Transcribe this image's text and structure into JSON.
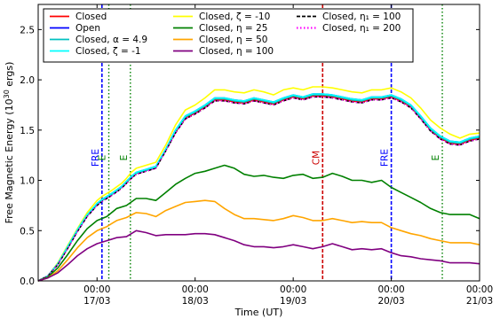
{
  "chart_data": {
    "type": "line",
    "xlabel": "Time (UT)",
    "ylabel": {
      "prefix": "Free Magnetic Energy (10",
      "exp": "30",
      "suffix": " ergs)"
    },
    "xlim": [
      0.0,
      4.5
    ],
    "ylim": [
      0.0,
      2.75
    ],
    "yticks": [
      "0.0",
      "0.5",
      "1.0",
      "1.5",
      "2.0",
      "2.5"
    ],
    "ytick_values": [
      0.0,
      0.5,
      1.0,
      1.5,
      2.0,
      2.5
    ],
    "xticks": [
      {
        "x": 0.6,
        "line1": "00:00",
        "line2": "17/03"
      },
      {
        "x": 1.6,
        "line1": "00:00",
        "line2": "18/03"
      },
      {
        "x": 2.6,
        "line1": "00:00",
        "line2": "19/03"
      },
      {
        "x": 3.6,
        "line1": "00:00",
        "line2": "20/03"
      },
      {
        "x": 4.6,
        "line1": "00:00",
        "line2": "21/03"
      }
    ],
    "grid": false,
    "legend_placement": "top",
    "legend": [
      {
        "label": "Closed",
        "color": "#ff0000",
        "style": "solid"
      },
      {
        "label": "Open",
        "color": "#0000ff",
        "style": "solid"
      },
      {
        "label": "Closed, α = 4.9",
        "color": "#00c0c0",
        "style": "solid"
      },
      {
        "label": "Closed, ζ = -1",
        "color": "#00ffff",
        "style": "solid"
      },
      {
        "label": "Closed, ζ = -10",
        "color": "#ffff00",
        "style": "solid"
      },
      {
        "label": "Closed, η = 25",
        "color": "#008000",
        "style": "solid"
      },
      {
        "label": "Closed, η = 50",
        "color": "#ffa500",
        "style": "solid"
      },
      {
        "label": "Closed, η = 100",
        "color": "#800080",
        "style": "solid"
      },
      {
        "label": "Closed, η₁ = 100",
        "color": "#000000",
        "style": "dashed"
      },
      {
        "label": "Closed, η₁ = 200",
        "color": "#ff00ff",
        "style": "dotted"
      }
    ],
    "vlines": [
      {
        "x": 0.65,
        "color": "#0000ff",
        "style": "dashed",
        "label": "FRE"
      },
      {
        "x": 0.72,
        "color": "#008000",
        "style": "dotted",
        "label": "E"
      },
      {
        "x": 0.94,
        "color": "#008000",
        "style": "dotted",
        "label": "E"
      },
      {
        "x": 2.9,
        "color": "#cc0000",
        "style": "dashed",
        "label": "CM"
      },
      {
        "x": 3.6,
        "color": "#0000ff",
        "style": "dashed",
        "label": "FRE"
      },
      {
        "x": 4.12,
        "color": "#008000",
        "style": "dotted",
        "label": "E"
      }
    ],
    "series": [
      {
        "name": "Closed, ζ = -10",
        "color": "#ffff00",
        "style": "solid",
        "x": [
          0.0,
          0.1,
          0.2,
          0.3,
          0.4,
          0.5,
          0.6,
          0.65,
          0.75,
          0.85,
          0.9,
          0.95,
          1.0,
          1.1,
          1.2,
          1.3,
          1.4,
          1.5,
          1.6,
          1.7,
          1.8,
          1.9,
          2.0,
          2.1,
          2.2,
          2.3,
          2.4,
          2.5,
          2.6,
          2.7,
          2.8,
          2.9,
          3.0,
          3.1,
          3.2,
          3.3,
          3.4,
          3.5,
          3.6,
          3.7,
          3.8,
          3.9,
          4.0,
          4.1,
          4.2,
          4.3,
          4.4,
          4.5
        ],
        "y": [
          0.0,
          0.05,
          0.18,
          0.35,
          0.52,
          0.68,
          0.8,
          0.84,
          0.9,
          0.97,
          1.02,
          1.08,
          1.12,
          1.15,
          1.18,
          1.35,
          1.55,
          1.7,
          1.75,
          1.82,
          1.9,
          1.9,
          1.88,
          1.87,
          1.9,
          1.88,
          1.85,
          1.9,
          1.92,
          1.9,
          1.93,
          1.93,
          1.92,
          1.9,
          1.88,
          1.87,
          1.9,
          1.9,
          1.92,
          1.88,
          1.82,
          1.72,
          1.6,
          1.52,
          1.46,
          1.42,
          1.46,
          1.47
        ]
      },
      {
        "name": "Closed",
        "color": "#ff0000",
        "style": "solid",
        "x": [
          0.0,
          0.1,
          0.2,
          0.3,
          0.4,
          0.5,
          0.6,
          0.65,
          0.75,
          0.85,
          0.9,
          0.95,
          1.0,
          1.1,
          1.2,
          1.3,
          1.4,
          1.5,
          1.6,
          1.7,
          1.8,
          1.9,
          2.0,
          2.1,
          2.2,
          2.3,
          2.4,
          2.5,
          2.6,
          2.7,
          2.8,
          2.9,
          3.0,
          3.1,
          3.2,
          3.3,
          3.4,
          3.5,
          3.6,
          3.7,
          3.8,
          3.9,
          4.0,
          4.1,
          4.2,
          4.3,
          4.4,
          4.5
        ],
        "y": [
          0.0,
          0.05,
          0.17,
          0.33,
          0.5,
          0.65,
          0.76,
          0.8,
          0.86,
          0.93,
          0.98,
          1.03,
          1.07,
          1.1,
          1.13,
          1.3,
          1.48,
          1.62,
          1.67,
          1.73,
          1.8,
          1.8,
          1.78,
          1.77,
          1.8,
          1.78,
          1.76,
          1.8,
          1.83,
          1.81,
          1.84,
          1.84,
          1.83,
          1.81,
          1.79,
          1.78,
          1.81,
          1.81,
          1.83,
          1.79,
          1.73,
          1.62,
          1.5,
          1.42,
          1.37,
          1.36,
          1.4,
          1.42
        ]
      },
      {
        "name": "Open",
        "color": "#0000ff",
        "style": "solid",
        "x": [
          0.0,
          0.1,
          0.2,
          0.3,
          0.4,
          0.5,
          0.6,
          0.65,
          0.75,
          0.85,
          0.9,
          0.95,
          1.0,
          1.1,
          1.2,
          1.3,
          1.4,
          1.5,
          1.6,
          1.7,
          1.8,
          1.9,
          2.0,
          2.1,
          2.2,
          2.3,
          2.4,
          2.5,
          2.6,
          2.7,
          2.8,
          2.9,
          3.0,
          3.1,
          3.2,
          3.3,
          3.4,
          3.5,
          3.6,
          3.7,
          3.8,
          3.9,
          4.0,
          4.1,
          4.2,
          4.3,
          4.4,
          4.5
        ],
        "y": [
          0.0,
          0.05,
          0.17,
          0.33,
          0.5,
          0.65,
          0.77,
          0.81,
          0.87,
          0.94,
          0.99,
          1.04,
          1.08,
          1.11,
          1.14,
          1.31,
          1.5,
          1.64,
          1.69,
          1.75,
          1.82,
          1.82,
          1.8,
          1.79,
          1.82,
          1.8,
          1.78,
          1.82,
          1.85,
          1.83,
          1.86,
          1.86,
          1.85,
          1.83,
          1.81,
          1.8,
          1.83,
          1.83,
          1.85,
          1.81,
          1.75,
          1.64,
          1.52,
          1.44,
          1.39,
          1.38,
          1.42,
          1.44
        ]
      },
      {
        "name": "Closed, α = 4.9",
        "color": "#00c0c0",
        "style": "solid",
        "x": [
          0.0,
          0.1,
          0.2,
          0.3,
          0.4,
          0.5,
          0.6,
          0.65,
          0.75,
          0.85,
          0.9,
          0.95,
          1.0,
          1.1,
          1.2,
          1.3,
          1.4,
          1.5,
          1.6,
          1.7,
          1.8,
          1.9,
          2.0,
          2.1,
          2.2,
          2.3,
          2.4,
          2.5,
          2.6,
          2.7,
          2.8,
          2.9,
          3.0,
          3.1,
          3.2,
          3.3,
          3.4,
          3.5,
          3.6,
          3.7,
          3.8,
          3.9,
          4.0,
          4.1,
          4.2,
          4.3,
          4.4,
          4.5
        ],
        "y": [
          0.0,
          0.05,
          0.17,
          0.33,
          0.5,
          0.65,
          0.76,
          0.8,
          0.86,
          0.93,
          0.98,
          1.03,
          1.07,
          1.1,
          1.13,
          1.3,
          1.49,
          1.63,
          1.68,
          1.74,
          1.81,
          1.81,
          1.79,
          1.78,
          1.81,
          1.79,
          1.77,
          1.81,
          1.84,
          1.82,
          1.85,
          1.85,
          1.84,
          1.82,
          1.8,
          1.79,
          1.82,
          1.82,
          1.84,
          1.8,
          1.74,
          1.63,
          1.51,
          1.43,
          1.38,
          1.37,
          1.41,
          1.43
        ]
      },
      {
        "name": "Closed, ζ = -1",
        "color": "#00ffff",
        "style": "solid",
        "x": [
          0.0,
          0.1,
          0.2,
          0.3,
          0.4,
          0.5,
          0.6,
          0.65,
          0.75,
          0.85,
          0.9,
          0.95,
          1.0,
          1.1,
          1.2,
          1.3,
          1.4,
          1.5,
          1.6,
          1.7,
          1.8,
          1.9,
          2.0,
          2.1,
          2.2,
          2.3,
          2.4,
          2.5,
          2.6,
          2.7,
          2.8,
          2.9,
          3.0,
          3.1,
          3.2,
          3.3,
          3.4,
          3.5,
          3.6,
          3.7,
          3.8,
          3.9,
          4.0,
          4.1,
          4.2,
          4.3,
          4.4,
          4.5
        ],
        "y": [
          0.0,
          0.05,
          0.17,
          0.34,
          0.51,
          0.66,
          0.77,
          0.81,
          0.87,
          0.94,
          0.99,
          1.04,
          1.08,
          1.11,
          1.14,
          1.31,
          1.5,
          1.64,
          1.69,
          1.75,
          1.82,
          1.82,
          1.8,
          1.79,
          1.82,
          1.8,
          1.78,
          1.82,
          1.85,
          1.83,
          1.86,
          1.86,
          1.85,
          1.83,
          1.81,
          1.8,
          1.83,
          1.83,
          1.85,
          1.81,
          1.75,
          1.64,
          1.52,
          1.44,
          1.39,
          1.38,
          1.42,
          1.44
        ]
      },
      {
        "name": "Closed, η₁ = 100",
        "color": "#000000",
        "style": "dashed",
        "x": [
          0.0,
          0.1,
          0.2,
          0.3,
          0.4,
          0.5,
          0.6,
          0.65,
          0.75,
          0.85,
          0.9,
          0.95,
          1.0,
          1.1,
          1.2,
          1.3,
          1.4,
          1.5,
          1.6,
          1.7,
          1.8,
          1.9,
          2.0,
          2.1,
          2.2,
          2.3,
          2.4,
          2.5,
          2.6,
          2.7,
          2.8,
          2.9,
          3.0,
          3.1,
          3.2,
          3.3,
          3.4,
          3.5,
          3.6,
          3.7,
          3.8,
          3.9,
          4.0,
          4.1,
          4.2,
          4.3,
          4.4,
          4.5
        ],
        "y": [
          0.0,
          0.05,
          0.16,
          0.32,
          0.49,
          0.64,
          0.75,
          0.79,
          0.85,
          0.92,
          0.97,
          1.02,
          1.06,
          1.09,
          1.12,
          1.29,
          1.47,
          1.61,
          1.66,
          1.72,
          1.79,
          1.79,
          1.77,
          1.76,
          1.79,
          1.77,
          1.75,
          1.79,
          1.82,
          1.8,
          1.83,
          1.83,
          1.82,
          1.8,
          1.78,
          1.77,
          1.8,
          1.8,
          1.82,
          1.78,
          1.72,
          1.61,
          1.49,
          1.41,
          1.36,
          1.35,
          1.39,
          1.41
        ]
      },
      {
        "name": "Closed, η₁ = 200",
        "color": "#ff00ff",
        "style": "dotted",
        "x": [
          0.0,
          0.1,
          0.2,
          0.3,
          0.4,
          0.5,
          0.6,
          0.65,
          0.75,
          0.85,
          0.9,
          0.95,
          1.0,
          1.1,
          1.2,
          1.3,
          1.4,
          1.5,
          1.6,
          1.7,
          1.8,
          1.9,
          2.0,
          2.1,
          2.2,
          2.3,
          2.4,
          2.5,
          2.6,
          2.7,
          2.8,
          2.9,
          3.0,
          3.1,
          3.2,
          3.3,
          3.4,
          3.5,
          3.6,
          3.7,
          3.8,
          3.9,
          4.0,
          4.1,
          4.2,
          4.3,
          4.4,
          4.5
        ],
        "y": [
          0.0,
          0.05,
          0.16,
          0.32,
          0.49,
          0.64,
          0.75,
          0.79,
          0.85,
          0.92,
          0.97,
          1.02,
          1.06,
          1.09,
          1.12,
          1.29,
          1.47,
          1.61,
          1.66,
          1.72,
          1.79,
          1.79,
          1.77,
          1.76,
          1.79,
          1.77,
          1.75,
          1.79,
          1.82,
          1.8,
          1.83,
          1.83,
          1.82,
          1.8,
          1.78,
          1.77,
          1.8,
          1.8,
          1.82,
          1.78,
          1.72,
          1.61,
          1.49,
          1.41,
          1.36,
          1.35,
          1.39,
          1.41
        ]
      },
      {
        "name": "Closed, η = 25",
        "color": "#008000",
        "style": "solid",
        "x": [
          0.0,
          0.1,
          0.2,
          0.3,
          0.4,
          0.5,
          0.6,
          0.7,
          0.8,
          0.9,
          1.0,
          1.1,
          1.2,
          1.3,
          1.4,
          1.5,
          1.6,
          1.7,
          1.8,
          1.9,
          2.0,
          2.1,
          2.2,
          2.3,
          2.4,
          2.5,
          2.6,
          2.7,
          2.8,
          2.9,
          3.0,
          3.1,
          3.2,
          3.3,
          3.4,
          3.5,
          3.6,
          3.7,
          3.8,
          3.9,
          4.0,
          4.1,
          4.2,
          4.3,
          4.4,
          4.5
        ],
        "y": [
          0.0,
          0.04,
          0.13,
          0.26,
          0.4,
          0.52,
          0.6,
          0.64,
          0.72,
          0.75,
          0.82,
          0.82,
          0.8,
          0.88,
          0.96,
          1.02,
          1.07,
          1.09,
          1.12,
          1.15,
          1.12,
          1.06,
          1.04,
          1.05,
          1.03,
          1.02,
          1.05,
          1.06,
          1.02,
          1.03,
          1.07,
          1.04,
          1.0,
          1.0,
          0.98,
          1.0,
          0.93,
          0.88,
          0.83,
          0.78,
          0.72,
          0.68,
          0.66,
          0.66,
          0.66,
          0.62
        ]
      },
      {
        "name": "Closed, η = 50",
        "color": "#ffa500",
        "style": "solid",
        "x": [
          0.0,
          0.1,
          0.2,
          0.3,
          0.4,
          0.5,
          0.6,
          0.7,
          0.8,
          0.9,
          1.0,
          1.1,
          1.2,
          1.3,
          1.4,
          1.5,
          1.6,
          1.7,
          1.8,
          1.9,
          2.0,
          2.1,
          2.2,
          2.3,
          2.4,
          2.5,
          2.6,
          2.7,
          2.8,
          2.9,
          3.0,
          3.1,
          3.2,
          3.3,
          3.4,
          3.5,
          3.6,
          3.7,
          3.8,
          3.9,
          4.0,
          4.1,
          4.2,
          4.3,
          4.4,
          4.5
        ],
        "y": [
          0.0,
          0.03,
          0.1,
          0.21,
          0.33,
          0.43,
          0.5,
          0.54,
          0.6,
          0.63,
          0.68,
          0.67,
          0.64,
          0.7,
          0.74,
          0.78,
          0.79,
          0.8,
          0.79,
          0.72,
          0.66,
          0.62,
          0.62,
          0.61,
          0.6,
          0.62,
          0.65,
          0.63,
          0.6,
          0.6,
          0.62,
          0.6,
          0.58,
          0.59,
          0.58,
          0.58,
          0.53,
          0.5,
          0.47,
          0.45,
          0.42,
          0.4,
          0.38,
          0.38,
          0.38,
          0.36
        ]
      },
      {
        "name": "Closed, η = 100",
        "color": "#800080",
        "style": "solid",
        "x": [
          0.0,
          0.1,
          0.2,
          0.3,
          0.4,
          0.5,
          0.6,
          0.7,
          0.8,
          0.9,
          1.0,
          1.1,
          1.2,
          1.3,
          1.4,
          1.5,
          1.6,
          1.7,
          1.8,
          1.9,
          2.0,
          2.1,
          2.2,
          2.3,
          2.4,
          2.5,
          2.6,
          2.7,
          2.8,
          2.9,
          3.0,
          3.1,
          3.2,
          3.3,
          3.4,
          3.5,
          3.6,
          3.7,
          3.8,
          3.9,
          4.0,
          4.1,
          4.2,
          4.3,
          4.4,
          4.5
        ],
        "y": [
          0.0,
          0.03,
          0.08,
          0.16,
          0.25,
          0.32,
          0.37,
          0.4,
          0.43,
          0.44,
          0.5,
          0.48,
          0.45,
          0.46,
          0.46,
          0.46,
          0.47,
          0.47,
          0.46,
          0.43,
          0.4,
          0.36,
          0.34,
          0.34,
          0.33,
          0.34,
          0.36,
          0.34,
          0.32,
          0.34,
          0.37,
          0.34,
          0.31,
          0.32,
          0.31,
          0.32,
          0.28,
          0.25,
          0.24,
          0.22,
          0.21,
          0.2,
          0.18,
          0.18,
          0.18,
          0.17
        ]
      }
    ]
  }
}
